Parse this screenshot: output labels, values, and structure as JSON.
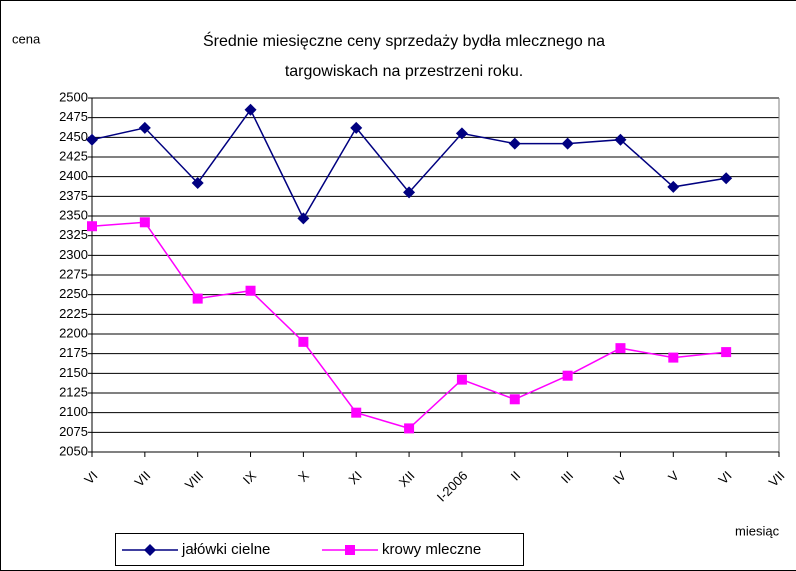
{
  "chart_data": {
    "type": "line",
    "title": [
      "Średnie miesięczne ceny sprzedaży bydła mlecznego na",
      "targowiskach na przestrzeni roku."
    ],
    "y_label": "cena",
    "x_label": "miesiąc",
    "categories": [
      "VI",
      "VII",
      "VIII",
      "IX",
      "X",
      "XI",
      "XII",
      "I-2006",
      "II",
      "III",
      "IV",
      "V",
      "VI",
      "VII"
    ],
    "series": [
      {
        "name": "jałówki cielne",
        "color": "#000080",
        "marker": "diamond",
        "values": [
          2447,
          2462,
          2392,
          2485,
          2347,
          2462,
          2380,
          2455,
          2442,
          2442,
          2447,
          2387,
          2398,
          null
        ]
      },
      {
        "name": "krowy mleczne",
        "color": "#ff00ff",
        "marker": "square",
        "values": [
          2337,
          2342,
          2245,
          2255,
          2190,
          2100,
          2080,
          2142,
          2117,
          2147,
          2182,
          2170,
          2177,
          null
        ]
      }
    ],
    "ylim": [
      2050,
      2500
    ],
    "yticks": [
      2050,
      2075,
      2100,
      2125,
      2150,
      2175,
      2200,
      2225,
      2250,
      2275,
      2300,
      2325,
      2350,
      2375,
      2400,
      2425,
      2450,
      2475,
      2500
    ],
    "grid": true,
    "legend": "bottom"
  }
}
